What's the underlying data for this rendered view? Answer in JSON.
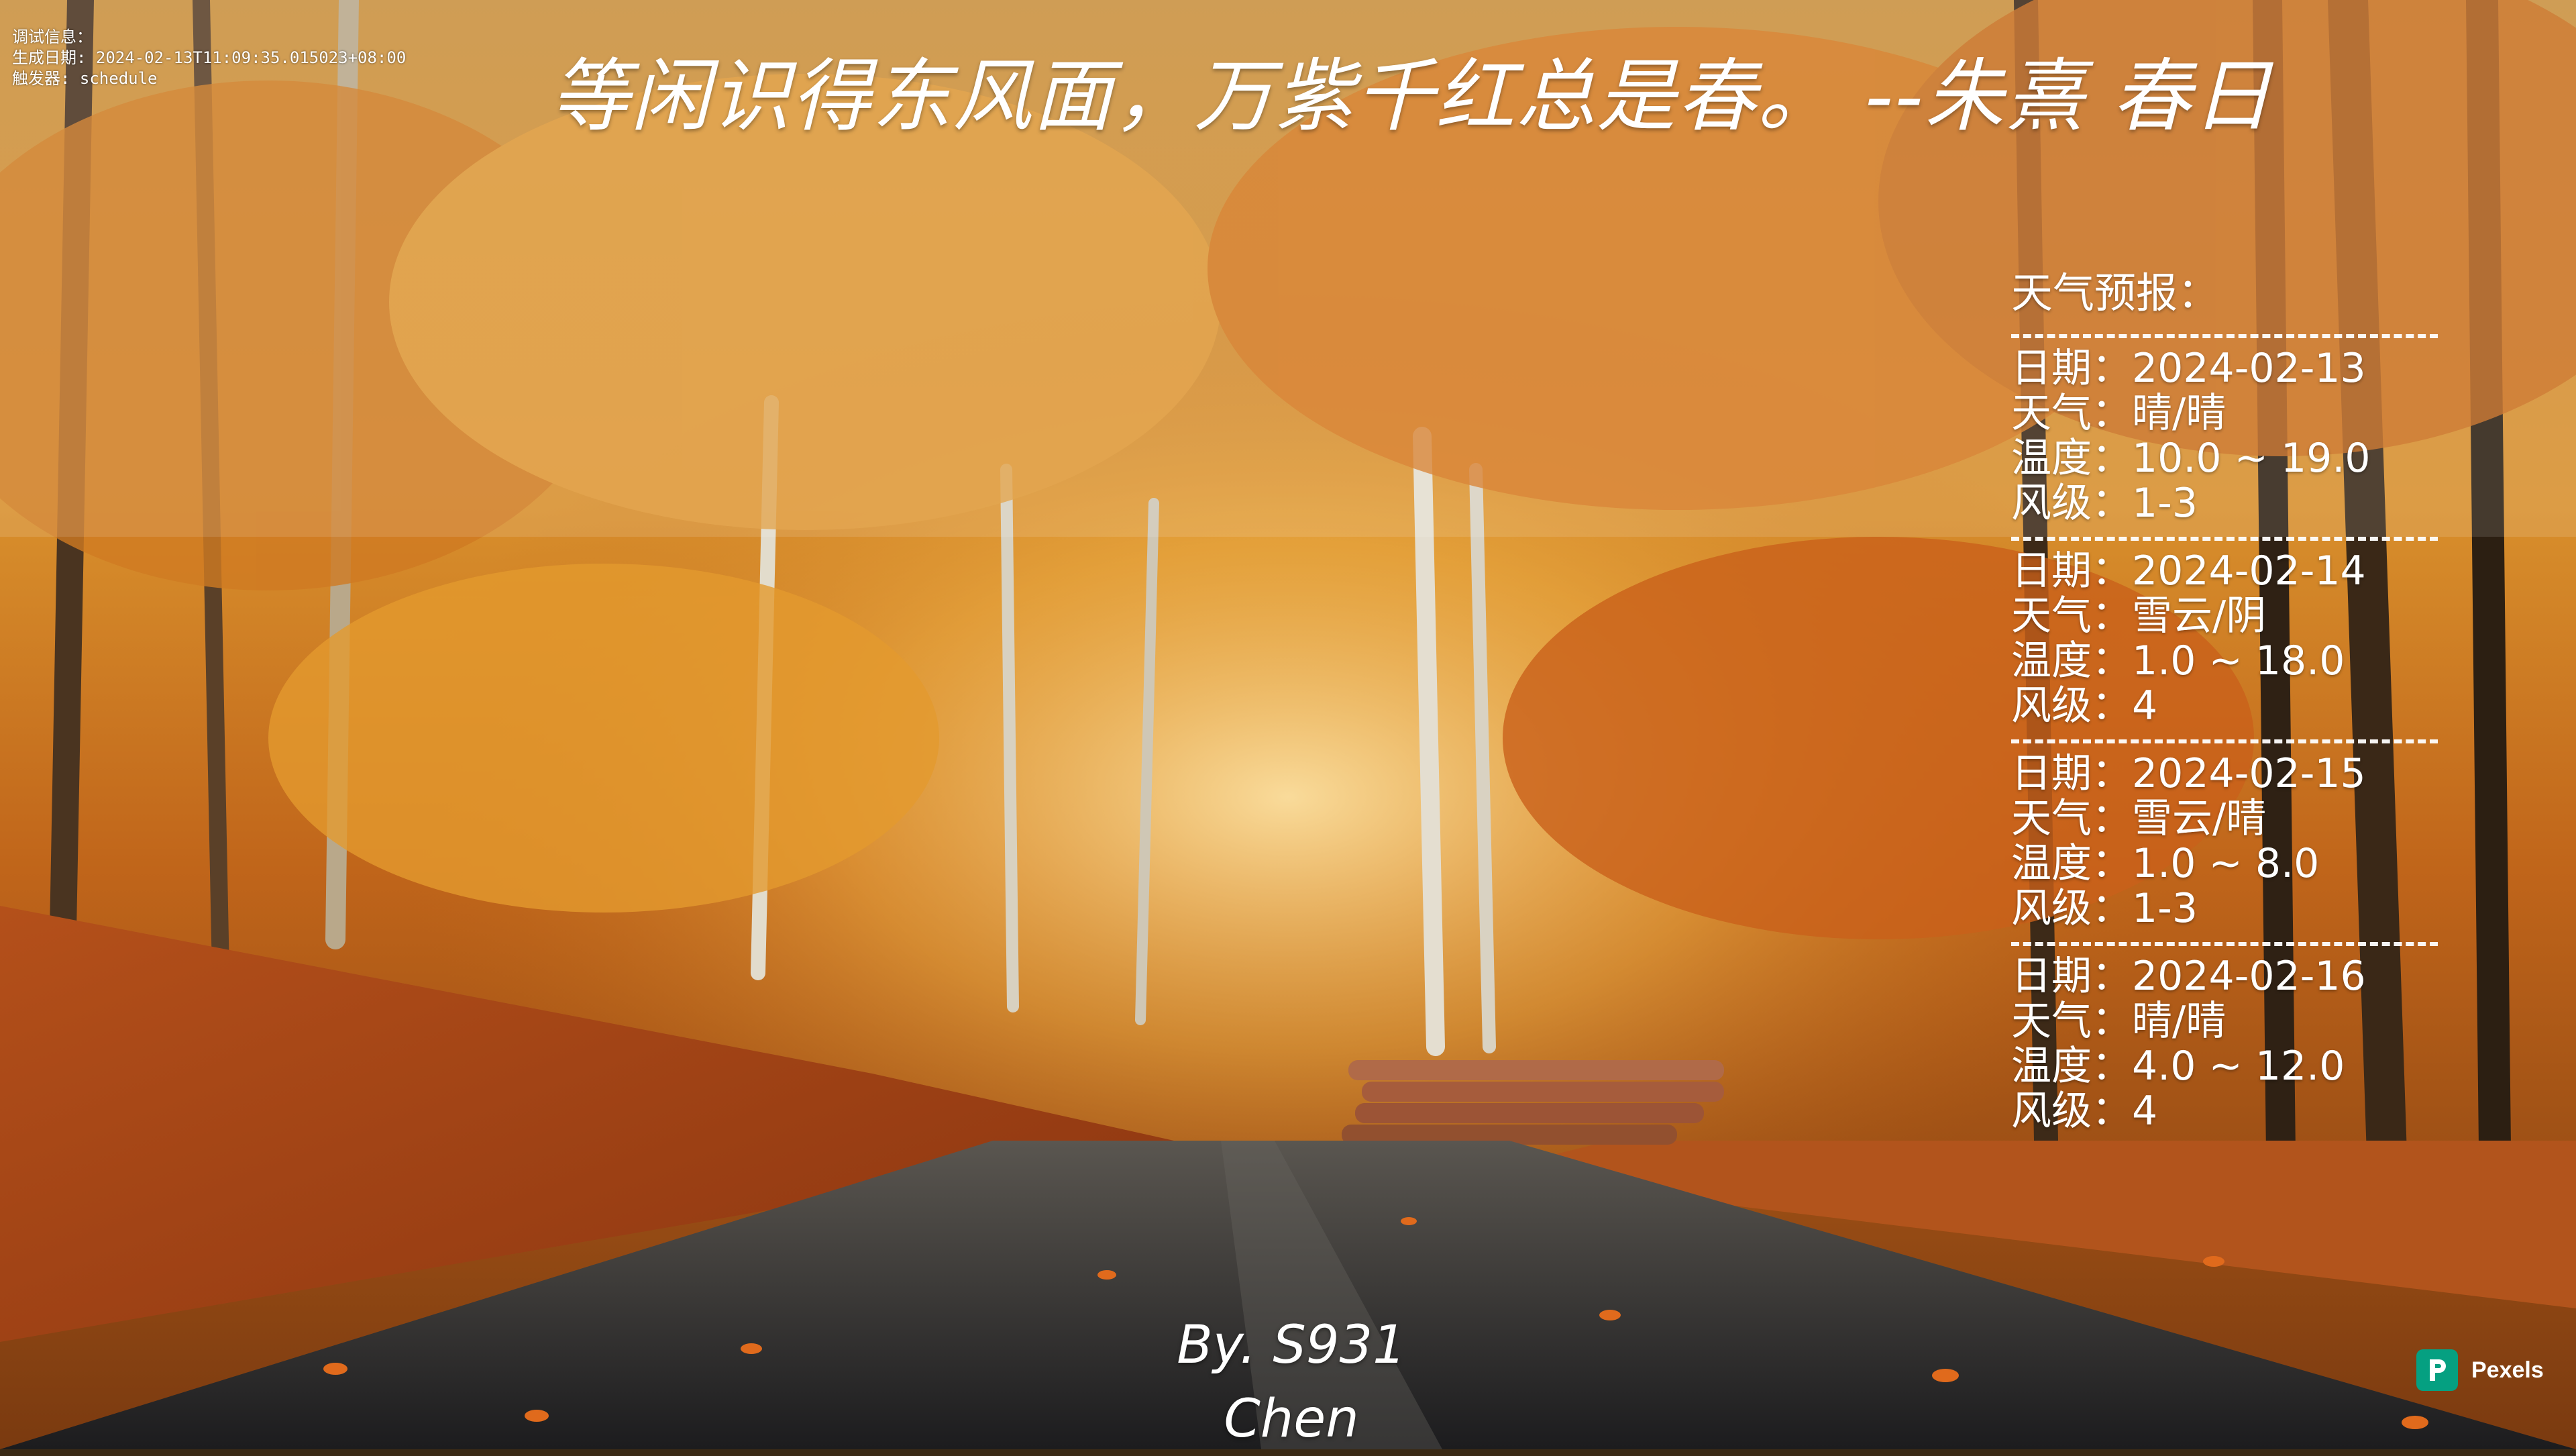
{
  "debug": {
    "line1": "调试信息：",
    "line2": "生成日期: 2024-02-13T11:09:35.015023+08:00",
    "line3": "触发器: schedule"
  },
  "quote": "等闲识得东风面，万紫千红总是春。  --朱熹 春日",
  "weather": {
    "title": "天气预报：",
    "days": [
      {
        "date": "日期：2024-02-13",
        "cond": "天气：晴/晴",
        "temp": "温度：10.0 ~ 19.0",
        "wind": "风级：1-3"
      },
      {
        "date": "日期：2024-02-14",
        "cond": "天气：雪云/阴",
        "temp": "温度：1.0 ~ 18.0",
        "wind": "风级：4"
      },
      {
        "date": "日期：2024-02-15",
        "cond": "天气：雪云/晴",
        "temp": "温度：1.0 ~ 8.0",
        "wind": "风级：1-3"
      },
      {
        "date": "日期：2024-02-16",
        "cond": "天气：晴/晴",
        "temp": "温度：4.0 ~ 12.0",
        "wind": "风级：4"
      }
    ]
  },
  "credit": "By. S931 Chen",
  "watermark": {
    "label": "Pexels",
    "icon": "pexels-logo-icon",
    "color": "#05a081"
  }
}
